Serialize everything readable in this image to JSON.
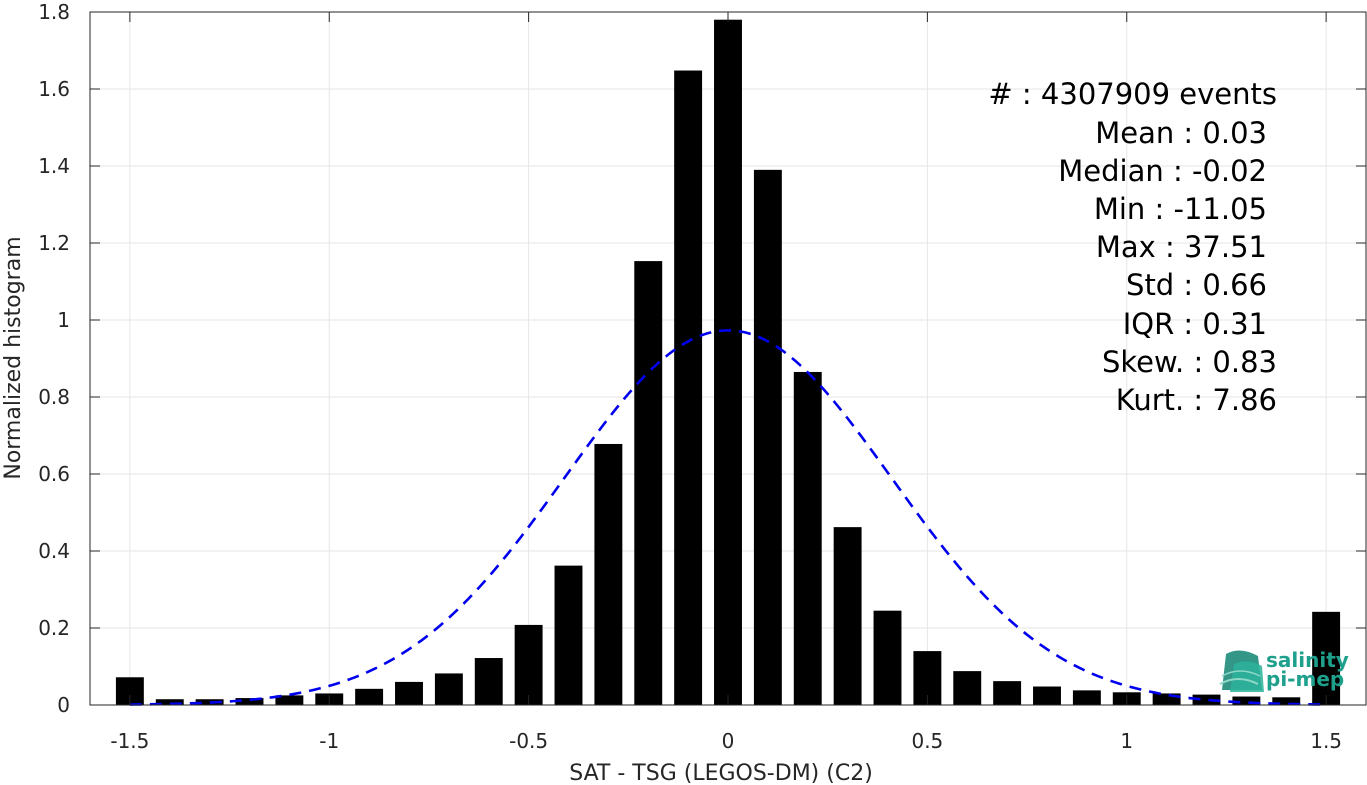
{
  "chart_data": {
    "type": "bar",
    "xlabel": "SAT - TSG (LEGOS-DM) (C2)",
    "ylabel": "Normalized histogram",
    "xlim": [
      -1.6,
      1.6
    ],
    "ylim": [
      0,
      1.8
    ],
    "xticks": [
      "-1.5",
      "-1",
      "-0.5",
      "0",
      "0.5",
      "1",
      "1.5"
    ],
    "xtick_values": [
      -1.5,
      -1,
      -0.5,
      0,
      0.5,
      1,
      1.5
    ],
    "yticks": [
      "0",
      "0.2",
      "0.4",
      "0.6",
      "0.8",
      "1",
      "1.2",
      "1.4",
      "1.6",
      "1.8"
    ],
    "ytick_values": [
      0,
      0.2,
      0.4,
      0.6,
      0.8,
      1,
      1.2,
      1.4,
      1.6,
      1.8
    ],
    "grid": true,
    "bar_color": "#000000",
    "fit_color": "#0000ee",
    "bins": [
      -1.5,
      -1.4,
      -1.3,
      -1.2,
      -1.1,
      -1.0,
      -0.9,
      -0.8,
      -0.7,
      -0.6,
      -0.5,
      -0.4,
      -0.3,
      -0.2,
      -0.1,
      0.0,
      0.1,
      0.2,
      0.3,
      0.4,
      0.5,
      0.6,
      0.7,
      0.8,
      0.9,
      1.0,
      1.1,
      1.2,
      1.3,
      1.4,
      1.5
    ],
    "values": [
      0.072,
      0.015,
      0.015,
      0.018,
      0.025,
      0.03,
      0.042,
      0.06,
      0.082,
      0.122,
      0.208,
      0.362,
      0.678,
      1.153,
      1.648,
      1.78,
      1.39,
      0.865,
      0.462,
      0.245,
      0.14,
      0.088,
      0.062,
      0.048,
      0.038,
      0.033,
      0.03,
      0.027,
      0.022,
      0.02,
      0.242
    ],
    "fit": {
      "type": "normal",
      "mean": 0.0,
      "std": 0.41,
      "style": "dashed"
    },
    "annotations": [
      "#  : 4307909 events",
      "Mean : 0.03",
      "Median : -0.02",
      "Min : -11.05",
      "Max : 37.51",
      "Std : 0.66",
      "IQR : 0.31",
      "Skew. : 0.83",
      "Kurt. : 7.86"
    ]
  },
  "logo": {
    "line1": "salinity",
    "line2": "pi-mep"
  }
}
